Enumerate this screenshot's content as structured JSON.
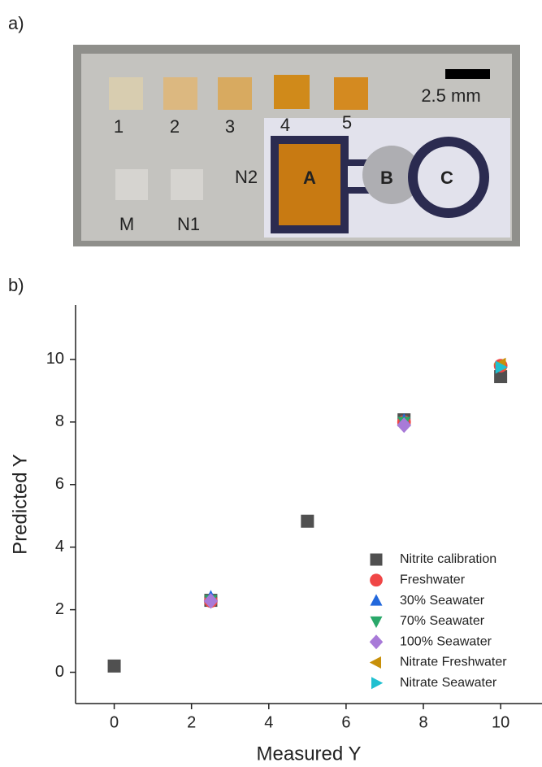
{
  "panel_labels": [
    "a)",
    "b)"
  ],
  "photo": {
    "scale_bar": "2.5 mm",
    "labels": [
      "1",
      "2",
      "3",
      "4",
      "5",
      "M",
      "N1",
      "N2",
      "A",
      "B",
      "C"
    ]
  },
  "chart_data": {
    "type": "scatter",
    "x_label": "Measured Y",
    "y_label": "Predicted Y",
    "xlim": [
      -1,
      11.07
    ],
    "ylim": [
      -1,
      11.74
    ],
    "xticks": [
      0,
      2,
      4,
      6,
      8,
      10
    ],
    "yticks": [
      0,
      2,
      4,
      6,
      8,
      10
    ],
    "legend": "lower right",
    "series": [
      {
        "name": "Nitrite calibration",
        "color": "#505050",
        "marker": "square",
        "x": [
          0,
          2.5,
          5,
          7.5,
          10
        ],
        "values": [
          0.2,
          2.3,
          4.83,
          8.07,
          9.45
        ]
      },
      {
        "name": "Freshwater",
        "color": "#f04646",
        "marker": "circle",
        "x": [
          2.5,
          7.5,
          10
        ],
        "values": [
          2.28,
          8.0,
          9.8
        ]
      },
      {
        "name": "30% Seawater",
        "color": "#2268dc",
        "marker": "triangle-up",
        "x": [
          2.5,
          7.5
        ],
        "values": [
          2.4,
          8.05
        ]
      },
      {
        "name": "70% Seawater",
        "color": "#2aa86a",
        "marker": "triangle-down",
        "x": [
          2.5,
          7.5
        ],
        "values": [
          2.3,
          8.0
        ]
      },
      {
        "name": "100% Seawater",
        "color": "#a87ad8",
        "marker": "diamond",
        "x": [
          2.5,
          7.5
        ],
        "values": [
          2.28,
          7.9
        ]
      },
      {
        "name": "Nitrate Freshwater",
        "color": "#c8900a",
        "marker": "triangle-left",
        "x": [
          10
        ],
        "values": [
          9.85
        ]
      },
      {
        "name": "Nitrate Seawater",
        "color": "#20c0d0",
        "marker": "triangle-right",
        "x": [
          10
        ],
        "values": [
          9.75
        ]
      }
    ]
  }
}
